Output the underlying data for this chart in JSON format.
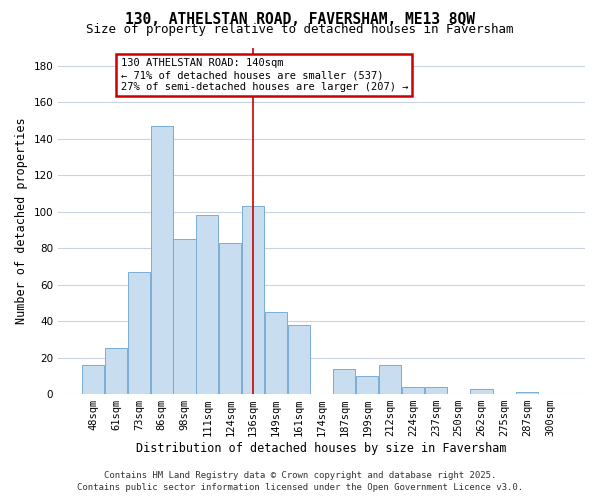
{
  "title": "130, ATHELSTAN ROAD, FAVERSHAM, ME13 8QW",
  "subtitle": "Size of property relative to detached houses in Faversham",
  "xlabel": "Distribution of detached houses by size in Faversham",
  "ylabel": "Number of detached properties",
  "bar_labels": [
    "48sqm",
    "61sqm",
    "73sqm",
    "86sqm",
    "98sqm",
    "111sqm",
    "124sqm",
    "136sqm",
    "149sqm",
    "161sqm",
    "174sqm",
    "187sqm",
    "199sqm",
    "212sqm",
    "224sqm",
    "237sqm",
    "250sqm",
    "262sqm",
    "275sqm",
    "287sqm",
    "300sqm"
  ],
  "bar_values": [
    16,
    25,
    67,
    147,
    85,
    98,
    83,
    103,
    45,
    38,
    0,
    14,
    10,
    16,
    4,
    4,
    0,
    3,
    0,
    1,
    0
  ],
  "bar_color": "#c9ddf0",
  "bar_edge_color": "#7aadd4",
  "vline_x": 7,
  "vline_color": "#cc0000",
  "ylim": [
    0,
    190
  ],
  "yticks": [
    0,
    20,
    40,
    60,
    80,
    100,
    120,
    140,
    160,
    180
  ],
  "annotation_title": "130 ATHELSTAN ROAD: 140sqm",
  "annotation_line1": "← 71% of detached houses are smaller (537)",
  "annotation_line2": "27% of semi-detached houses are larger (207) →",
  "annotation_box_color": "#ffffff",
  "annotation_box_edge": "#cc0000",
  "footer1": "Contains HM Land Registry data © Crown copyright and database right 2025.",
  "footer2": "Contains public sector information licensed under the Open Government Licence v3.0.",
  "background_color": "#ffffff",
  "grid_color": "#c8d4e4",
  "title_fontsize": 10.5,
  "subtitle_fontsize": 9,
  "axis_label_fontsize": 8.5,
  "tick_fontsize": 7.5,
  "footer_fontsize": 6.5
}
